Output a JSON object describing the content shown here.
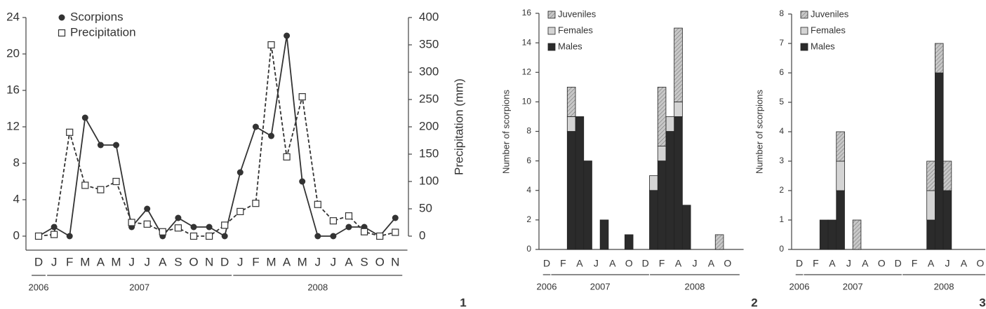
{
  "chart_data": [
    {
      "type": "line",
      "categories": [
        "D",
        "J",
        "F",
        "M",
        "A",
        "M",
        "J",
        "J",
        "A",
        "S",
        "O",
        "N",
        "D",
        "J",
        "F",
        "M",
        "A",
        "M",
        "J",
        "J",
        "A",
        "S",
        "O",
        "N"
      ],
      "years": [
        "2006",
        "2007",
        "2008"
      ],
      "panel": "1",
      "y2label": "Precipitation (mm)",
      "ylim": [
        0,
        24
      ],
      "yticks": [
        0,
        4,
        8,
        12,
        16,
        20,
        24
      ],
      "y2lim": [
        0,
        400
      ],
      "y2ticks": [
        0,
        50,
        100,
        150,
        200,
        250,
        300,
        350,
        400
      ],
      "series": [
        {
          "name": "Scorpions",
          "color": "#333333",
          "marker": "circle",
          "line_style": "solid",
          "values": [
            0,
            1,
            0,
            13,
            10,
            10,
            1,
            3,
            0,
            2,
            1,
            1,
            0,
            7,
            12,
            11,
            22,
            6,
            0,
            0,
            1,
            1,
            0,
            2
          ]
        },
        {
          "name": "Precipitation",
          "color": "#333333",
          "marker": "square",
          "line_style": "dashed",
          "axis": "y2",
          "values": [
            0,
            3,
            190,
            93,
            85,
            100,
            25,
            22,
            8,
            15,
            0,
            0,
            20,
            45,
            60,
            350,
            145,
            255,
            58,
            28,
            37,
            8,
            0,
            7
          ]
        }
      ]
    },
    {
      "type": "stacked_bar",
      "categories": [
        "D",
        null,
        "F",
        null,
        "A",
        null,
        "J",
        null,
        "A",
        null,
        "O",
        null,
        "D",
        null,
        "F",
        null,
        "A",
        null,
        "J",
        null,
        "A",
        null,
        "O",
        null
      ],
      "years": [
        "2006",
        "2007",
        "2008"
      ],
      "panel": "2",
      "ylabel": "Number of scorpions",
      "ylim": [
        0,
        16
      ],
      "yticks": [
        0,
        2,
        4,
        6,
        8,
        10,
        12,
        14,
        16
      ],
      "series": [
        {
          "name": "Males",
          "color": "#2b2b2b",
          "values": [
            0,
            0,
            0,
            8,
            9,
            6,
            0,
            2,
            0,
            0,
            1,
            0,
            0,
            4,
            6,
            8,
            9,
            3,
            0,
            0,
            0,
            0,
            0,
            0
          ]
        },
        {
          "name": "Females",
          "color": "#d4d4d4",
          "values": [
            0,
            0,
            0,
            1,
            0,
            0,
            0,
            0,
            0,
            0,
            0,
            0,
            0,
            1,
            1,
            1,
            1,
            0,
            0,
            0,
            0,
            0,
            0,
            0
          ]
        },
        {
          "name": "Juveniles",
          "color": "#c0c0c0",
          "pattern": "hatch",
          "values": [
            0,
            0,
            0,
            2,
            0,
            0,
            0,
            0,
            0,
            0,
            0,
            0,
            0,
            0,
            4,
            0,
            5,
            0,
            0,
            0,
            0,
            1,
            0,
            0
          ]
        }
      ]
    },
    {
      "type": "stacked_bar",
      "categories": [
        "D",
        null,
        "F",
        null,
        "A",
        null,
        "J",
        null,
        "A",
        null,
        "O",
        null,
        "D",
        null,
        "F",
        null,
        "A",
        null,
        "J",
        null,
        "A",
        null,
        "O",
        null
      ],
      "years": [
        "2006",
        "2007",
        "2008"
      ],
      "panel": "3",
      "ylabel": "Number of scorpions",
      "ylim": [
        0,
        8
      ],
      "yticks": [
        0,
        1,
        2,
        3,
        4,
        5,
        6,
        7,
        8
      ],
      "series": [
        {
          "name": "Males",
          "color": "#2b2b2b",
          "values": [
            0,
            0,
            0,
            1,
            1,
            2,
            0,
            0,
            0,
            0,
            0,
            0,
            0,
            0,
            0,
            0,
            1,
            6,
            2,
            0,
            0,
            0,
            0,
            0
          ]
        },
        {
          "name": "Females",
          "color": "#d4d4d4",
          "values": [
            0,
            0,
            0,
            0,
            0,
            1,
            0,
            0,
            0,
            0,
            0,
            0,
            0,
            0,
            0,
            0,
            1,
            0,
            0,
            0,
            0,
            0,
            0,
            0
          ]
        },
        {
          "name": "Juveniles",
          "color": "#c0c0c0",
          "pattern": "hatch",
          "values": [
            0,
            0,
            0,
            0,
            0,
            1,
            0,
            1,
            0,
            0,
            0,
            0,
            0,
            0,
            0,
            0,
            1,
            1,
            1,
            0,
            0,
            0,
            0,
            0
          ]
        }
      ]
    }
  ]
}
